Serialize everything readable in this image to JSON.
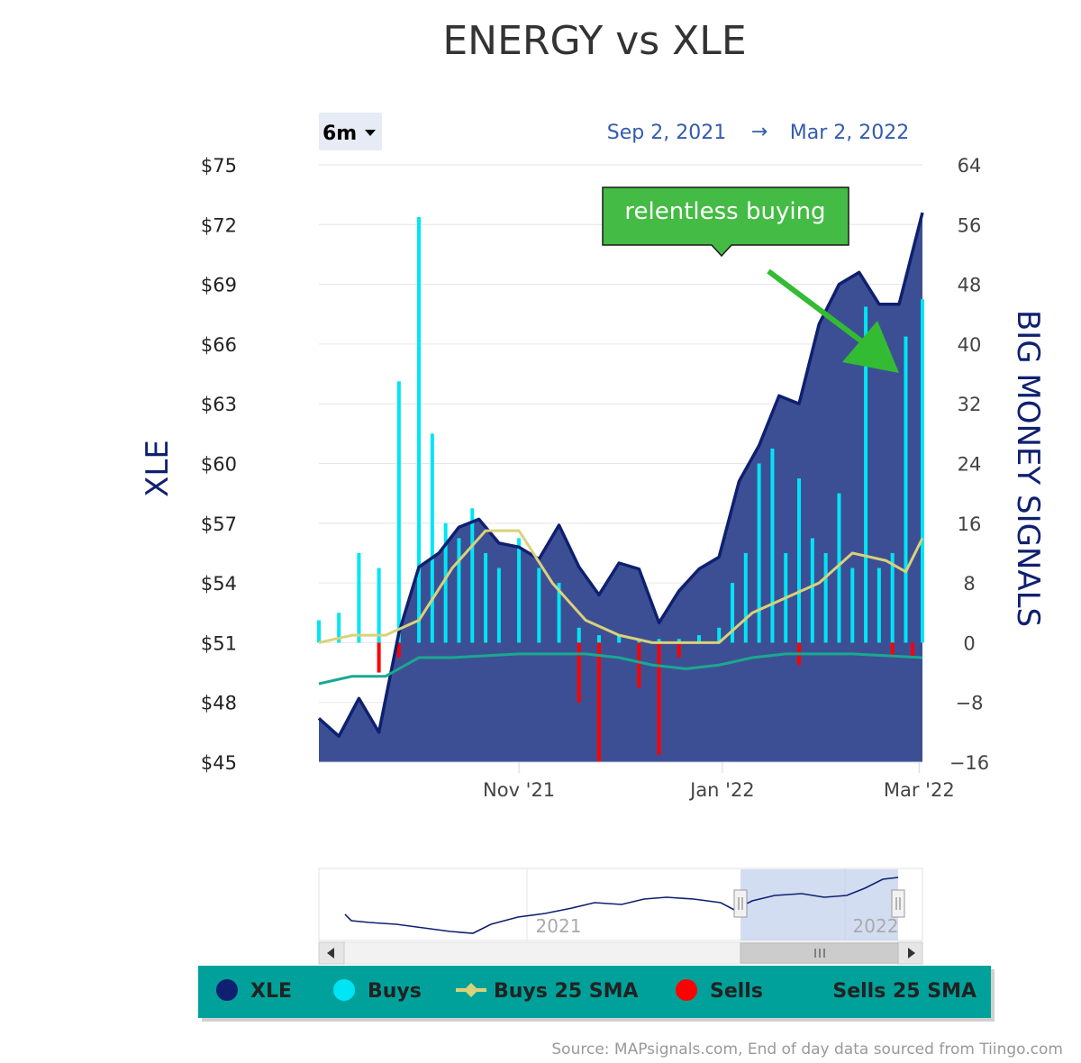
{
  "title": "ENERGY vs XLE",
  "range_selector": {
    "selected": "6m"
  },
  "date_range": {
    "from": "Sep 2, 2021",
    "arrow": "→",
    "to": "Mar 2, 2022"
  },
  "annotation": {
    "text": "relentless buying",
    "color": "#44bb44"
  },
  "source": "Source: MAPsignals.com, End of day data sourced from Tiingo.com",
  "navigator": {
    "labels": [
      "2021",
      "2022"
    ]
  },
  "legend": {
    "items": [
      {
        "label": "XLE",
        "color": "#0f2070"
      },
      {
        "label": "Buys",
        "color": "#00e5f5"
      },
      {
        "label": "Buys 25 SMA",
        "color": "#d9d27a"
      },
      {
        "label": "Sells",
        "color": "#ff0000"
      },
      {
        "label": "Sells 25 SMA",
        "color": "#1aa890"
      }
    ],
    "background": "#00a19a"
  },
  "chart_data": {
    "type": "line",
    "x_start": "2021-09-02",
    "x_end": "2022-03-02",
    "x_tick_labels": [
      "Nov '21",
      "Jan '22",
      "Mar '22"
    ],
    "x_tick_dates": [
      "2021-11-01",
      "2022-01-01",
      "2022-03-01"
    ],
    "y_left": {
      "title": "XLE",
      "min": 45,
      "max": 75,
      "ticks": [
        "$75",
        "$72",
        "$69",
        "$66",
        "$63",
        "$60",
        "$57",
        "$54",
        "$51",
        "$48",
        "$45"
      ]
    },
    "y_right": {
      "title": "BIG MONEY SIGNALS",
      "min": -16,
      "max": 64,
      "ticks": [
        "64",
        "56",
        "48",
        "40",
        "32",
        "24",
        "16",
        "8",
        "0",
        "−8",
        "−16"
      ]
    },
    "series": [
      {
        "name": "XLE",
        "type": "area",
        "axis": "left",
        "color": "#0f2070",
        "x": [
          "2021-09-02",
          "2021-09-08",
          "2021-09-14",
          "2021-09-20",
          "2021-09-26",
          "2021-10-02",
          "2021-10-08",
          "2021-10-14",
          "2021-10-20",
          "2021-10-26",
          "2021-11-01",
          "2021-11-07",
          "2021-11-13",
          "2021-11-19",
          "2021-11-25",
          "2021-12-01",
          "2021-12-07",
          "2021-12-13",
          "2021-12-19",
          "2021-12-25",
          "2021-12-31",
          "2022-01-06",
          "2022-01-12",
          "2022-01-18",
          "2022-01-24",
          "2022-01-30",
          "2022-02-05",
          "2022-02-11",
          "2022-02-17",
          "2022-02-23",
          "2022-03-02"
        ],
        "values": [
          47.2,
          46.3,
          48.2,
          46.5,
          51.5,
          54.8,
          55.5,
          56.8,
          57.2,
          56.0,
          55.8,
          55.2,
          56.9,
          54.8,
          53.4,
          55.0,
          54.7,
          52.0,
          53.6,
          54.7,
          55.3,
          59.1,
          60.9,
          63.4,
          63.0,
          67.0,
          69.0,
          69.6,
          68.0,
          68.0,
          72.6
        ]
      },
      {
        "name": "Buys",
        "type": "column",
        "axis": "right",
        "color": "#00e5f5",
        "x": [
          "2021-09-02",
          "2021-09-08",
          "2021-09-14",
          "2021-09-20",
          "2021-09-26",
          "2021-10-02",
          "2021-10-06",
          "2021-10-10",
          "2021-10-14",
          "2021-10-18",
          "2021-10-22",
          "2021-10-26",
          "2021-11-01",
          "2021-11-07",
          "2021-11-13",
          "2021-11-19",
          "2021-11-25",
          "2021-12-01",
          "2021-12-07",
          "2021-12-13",
          "2021-12-19",
          "2021-12-25",
          "2021-12-31",
          "2022-01-04",
          "2022-01-08",
          "2022-01-12",
          "2022-01-16",
          "2022-01-20",
          "2022-01-24",
          "2022-01-28",
          "2022-02-01",
          "2022-02-05",
          "2022-02-09",
          "2022-02-13",
          "2022-02-17",
          "2022-02-21",
          "2022-02-25",
          "2022-03-02"
        ],
        "values": [
          3,
          4,
          12,
          10,
          35,
          57,
          28,
          16,
          14,
          18,
          12,
          10,
          14,
          10,
          8,
          2,
          1,
          1,
          0.5,
          0.5,
          0.5,
          1,
          2,
          8,
          12,
          24,
          26,
          12,
          22,
          14,
          12,
          20,
          10,
          45,
          10,
          12,
          41,
          46
        ]
      },
      {
        "name": "Buys 25 SMA",
        "type": "line",
        "axis": "right",
        "color": "#d9d27a",
        "x": [
          "2021-09-02",
          "2021-09-12",
          "2021-09-22",
          "2021-10-02",
          "2021-10-12",
          "2021-10-22",
          "2021-11-01",
          "2021-11-11",
          "2021-11-21",
          "2021-12-01",
          "2021-12-11",
          "2021-12-21",
          "2021-12-31",
          "2022-01-10",
          "2022-01-20",
          "2022-01-30",
          "2022-02-09",
          "2022-02-19",
          "2022-02-25",
          "2022-03-02"
        ],
        "values": [
          0,
          1,
          1,
          3,
          10,
          15,
          15,
          8,
          3,
          1,
          0,
          0,
          0,
          4,
          6,
          8,
          12,
          11,
          9.5,
          14
        ]
      },
      {
        "name": "Sells",
        "type": "column",
        "axis": "right",
        "color": "#ff0000",
        "x": [
          "2021-09-20",
          "2021-09-26",
          "2021-11-19",
          "2021-11-25",
          "2021-12-07",
          "2021-12-13",
          "2021-12-19",
          "2022-01-24",
          "2022-02-21",
          "2022-02-27"
        ],
        "values": [
          -4,
          -2,
          -8,
          -16,
          -6,
          -15,
          -2,
          -3,
          -2,
          -2
        ]
      },
      {
        "name": "Sells 25 SMA",
        "type": "line",
        "axis": "right",
        "color": "#1aa890",
        "x": [
          "2021-09-02",
          "2021-09-12",
          "2021-09-22",
          "2021-10-02",
          "2021-10-12",
          "2021-11-01",
          "2021-11-21",
          "2021-12-01",
          "2021-12-11",
          "2021-12-21",
          "2021-12-31",
          "2022-01-10",
          "2022-01-20",
          "2022-02-09",
          "2022-03-02"
        ],
        "values": [
          -5.5,
          -4.5,
          -4.5,
          -2,
          -2,
          -1.5,
          -1.5,
          -2,
          -3,
          -3.5,
          -3,
          -2,
          -1.5,
          -1.5,
          -2
        ]
      }
    ]
  }
}
